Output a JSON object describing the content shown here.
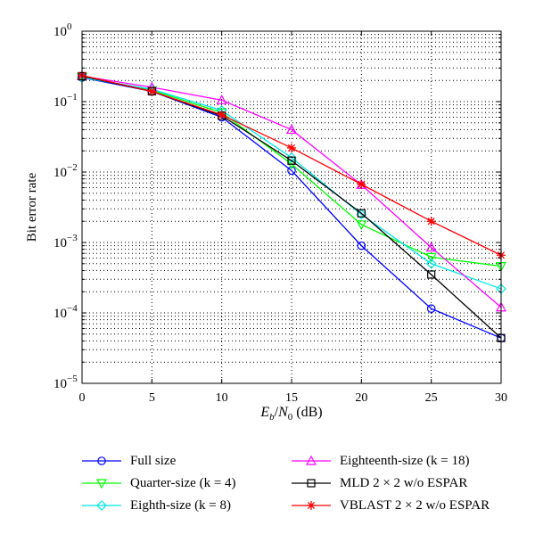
{
  "chart_data": {
    "type": "line",
    "xlabel": "E_b/N_0 (dB)",
    "ylabel": "Bit error rate",
    "x": [
      0,
      5,
      10,
      15,
      20,
      25,
      30
    ],
    "xlim": [
      0,
      30
    ],
    "ylim": [
      1e-05,
      1
    ],
    "yscale": "log",
    "grid": "dotted",
    "xticks": [
      "0",
      "5",
      "10",
      "15",
      "20",
      "25",
      "30"
    ],
    "yticks": [
      {
        "base": "10",
        "exp": "0"
      },
      {
        "base": "10",
        "exp": "−1"
      },
      {
        "base": "10",
        "exp": "−2"
      },
      {
        "base": "10",
        "exp": "−3"
      },
      {
        "base": "10",
        "exp": "−4"
      },
      {
        "base": "10",
        "exp": "−5"
      }
    ],
    "legend_placement": "below",
    "series": [
      {
        "name": "Full size",
        "color": "#0000ff",
        "marker": "circle",
        "values": [
          0.22,
          0.14,
          0.06,
          0.0105,
          0.0009,
          0.000115,
          4.4e-05
        ]
      },
      {
        "name": "Quarter-size (k = 4)",
        "color": "#00ff00",
        "marker": "triangle-down",
        "values": [
          0.225,
          0.145,
          0.07,
          0.013,
          0.0018,
          0.00062,
          0.00046
        ]
      },
      {
        "name": "Eighth-size (k = 8)",
        "color": "#00e5e5",
        "marker": "diamond",
        "values": [
          0.22,
          0.15,
          0.075,
          0.016,
          0.0025,
          0.0005,
          0.00022
        ]
      },
      {
        "name": "Eighteenth-size (k = 18)",
        "color": "#ff00ff",
        "marker": "triangle-up",
        "values": [
          0.23,
          0.16,
          0.105,
          0.04,
          0.0066,
          0.00085,
          0.00012
        ]
      },
      {
        "name": "MLD 2 × 2 w/o ESPAR",
        "color": "#000000",
        "marker": "square",
        "values": [
          0.23,
          0.14,
          0.063,
          0.0145,
          0.0026,
          0.00035,
          4.4e-05
        ]
      },
      {
        "name": "VBLAST 2 × 2 w/o ESPAR",
        "color": "#ff0000",
        "marker": "asterisk",
        "values": [
          0.235,
          0.14,
          0.065,
          0.022,
          0.0067,
          0.002,
          0.00066
        ]
      }
    ]
  }
}
